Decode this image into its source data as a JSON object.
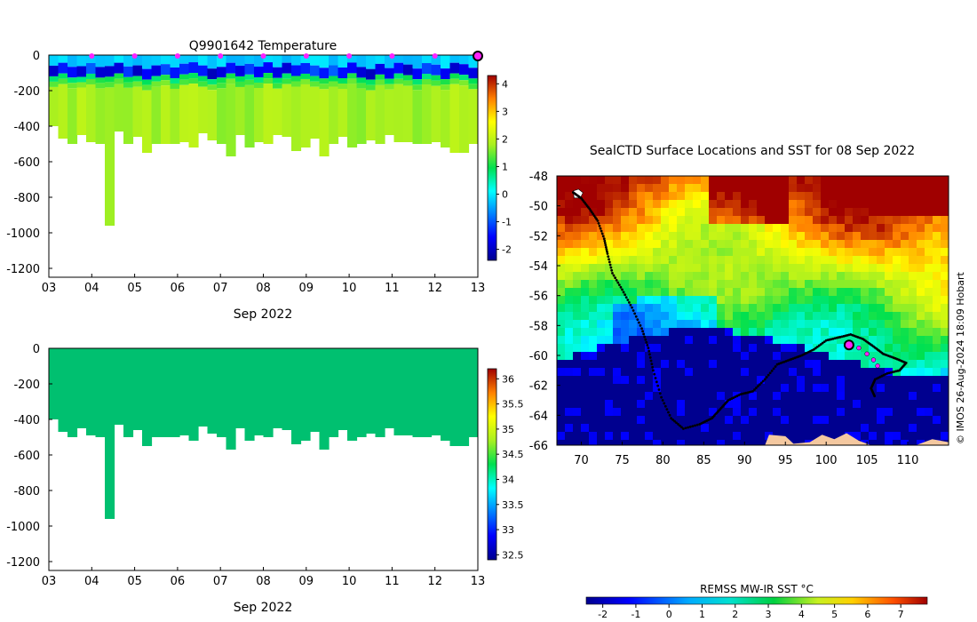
{
  "chart_data": [
    {
      "type": "heatmap",
      "title": "Q9901642  Temperature",
      "xlabel": "Sep 2022",
      "x_ticks": [
        "03",
        "04",
        "05",
        "06",
        "07",
        "08",
        "09",
        "10",
        "11",
        "12",
        "13"
      ],
      "xlim": [
        3,
        13
      ],
      "ylim": [
        -1250,
        0
      ],
      "y_ticks": [
        0,
        -200,
        -400,
        -600,
        -800,
        -1000,
        -1200
      ],
      "colorbar": {
        "min": -2.4,
        "max": 4.3,
        "ticks": [
          4,
          3,
          2,
          1,
          0,
          -1,
          -2
        ]
      },
      "profile_markers_day": [
        4,
        5,
        6,
        7,
        8,
        9,
        10,
        11,
        12
      ],
      "latest_marker_day": 13,
      "profile_depths_m": [
        400,
        470,
        500,
        450,
        490,
        500,
        960,
        430,
        500,
        460,
        550,
        500,
        500,
        500,
        490,
        520,
        440,
        480,
        500,
        570,
        450,
        520,
        490,
        500,
        450,
        460,
        540,
        520,
        470,
        570,
        500,
        460,
        520,
        500,
        480,
        500,
        450,
        490,
        490,
        500,
        500,
        490,
        520,
        550,
        550,
        500
      ],
      "layers": [
        {
          "from": 0,
          "to": 60,
          "temp": -0.2
        },
        {
          "from": 60,
          "to": 120,
          "temp": -1.5
        },
        {
          "from": 120,
          "to": 150,
          "temp": 0.9
        },
        {
          "from": 150,
          "to": 180,
          "temp": 1.4
        },
        {
          "from": 180,
          "to": 9999,
          "temp": 1.8
        }
      ]
    },
    {
      "type": "heatmap",
      "title": "",
      "xlabel": "Sep 2022",
      "x_ticks": [
        "03",
        "04",
        "05",
        "06",
        "07",
        "08",
        "09",
        "10",
        "11",
        "12",
        "13"
      ],
      "xlim": [
        3,
        13
      ],
      "ylim": [
        -1250,
        0
      ],
      "y_ticks": [
        0,
        -200,
        -400,
        -600,
        -800,
        -1000,
        -1200
      ],
      "colorbar": {
        "min": 32.4,
        "max": 36.2,
        "ticks": [
          36,
          35.5,
          35,
          34.5,
          34,
          33.5,
          33,
          32.5
        ]
      },
      "uniform_value": 34.6
    },
    {
      "type": "map",
      "title": "SealCTD Surface Locations and SST for 08 Sep 2022",
      "xlim": [
        67,
        115
      ],
      "ylim": [
        -66,
        -48
      ],
      "x_ticks": [
        70,
        75,
        80,
        85,
        90,
        95,
        100,
        105,
        110
      ],
      "y_ticks": [
        -48,
        -50,
        -52,
        -54,
        -56,
        -58,
        -60,
        -62,
        -64,
        -66
      ],
      "colorbar_title": "REMSS MW-IR SST °C",
      "colorbar": {
        "min": -2.5,
        "max": 7.8,
        "ticks": [
          -2,
          -1,
          0,
          1,
          2,
          3,
          4,
          5,
          6,
          7
        ]
      },
      "credit": "© IMOS 26-Aug-2024 18:09 Hobart",
      "track": [
        [
          69.0,
          -49.1
        ],
        [
          70.0,
          -49.5
        ],
        [
          71.0,
          -50.2
        ],
        [
          72.0,
          -51.0
        ],
        [
          72.8,
          -52.2
        ],
        [
          73.2,
          -53.2
        ],
        [
          73.8,
          -54.5
        ],
        [
          75.0,
          -55.6
        ],
        [
          76.2,
          -56.8
        ],
        [
          77.4,
          -58.2
        ],
        [
          78.2,
          -59.5
        ],
        [
          78.8,
          -61.0
        ],
        [
          79.8,
          -62.8
        ],
        [
          81.0,
          -64.2
        ],
        [
          82.5,
          -64.9
        ],
        [
          84.5,
          -64.6
        ],
        [
          86.0,
          -64.2
        ],
        [
          87.0,
          -63.6
        ],
        [
          88.0,
          -63.0
        ],
        [
          89.5,
          -62.6
        ],
        [
          91.0,
          -62.4
        ],
        [
          92.5,
          -61.6
        ],
        [
          94.0,
          -60.6
        ],
        [
          95.5,
          -60.3
        ],
        [
          97.0,
          -60.0
        ],
        [
          98.5,
          -59.6
        ],
        [
          100.0,
          -59.0
        ],
        [
          101.5,
          -58.8
        ],
        [
          103.0,
          -58.6
        ],
        [
          104.5,
          -58.9
        ],
        [
          105.8,
          -59.4
        ],
        [
          107.0,
          -59.9
        ],
        [
          108.5,
          -60.2
        ],
        [
          109.8,
          -60.5
        ],
        [
          109.0,
          -61.0
        ],
        [
          107.5,
          -61.2
        ],
        [
          106.0,
          -61.6
        ],
        [
          105.5,
          -62.2
        ],
        [
          106.0,
          -62.8
        ]
      ],
      "recent_track": [
        [
          102.8,
          -59.3
        ],
        [
          104.0,
          -59.5
        ],
        [
          105.0,
          -59.9
        ],
        [
          105.8,
          -60.3
        ],
        [
          106.3,
          -60.7
        ]
      ],
      "current_position": [
        102.8,
        -59.3
      ]
    }
  ]
}
